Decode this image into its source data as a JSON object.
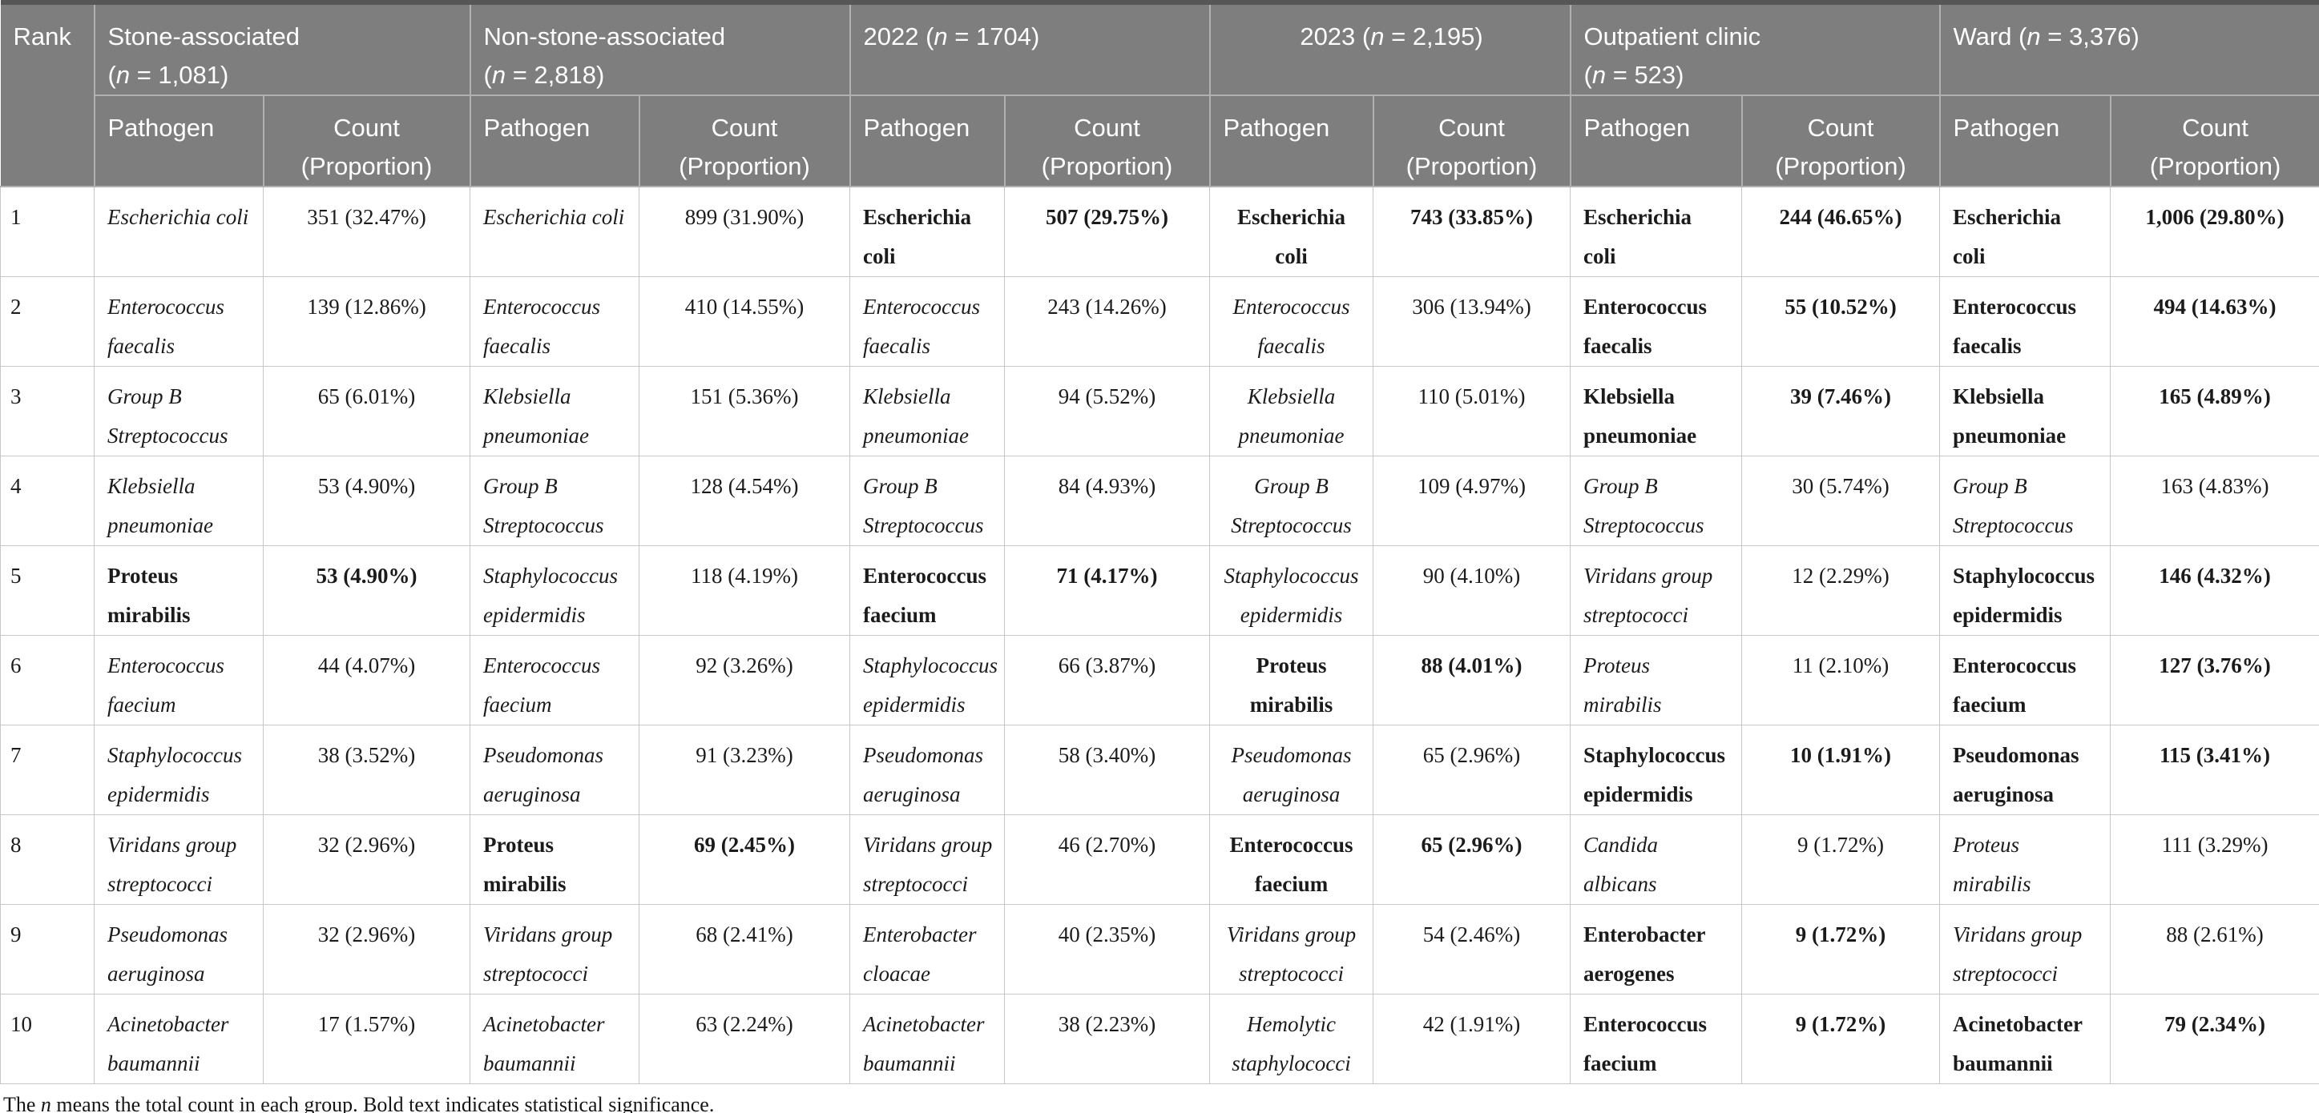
{
  "colors": {
    "header_bg": "#7e7e7e",
    "header_text": "#ffffff",
    "header_divider": "#b0b0b0",
    "grid_line": "#c6c6c6",
    "body_text": "#1b1b1b",
    "top_rule": "#565656",
    "page_bg": "#ffffff"
  },
  "table": {
    "rank_header": "Rank",
    "groups": [
      {
        "title": "Stone-associated\n(n = 1,081)",
        "pathogen_header": "Pathogen",
        "count_header": "Count\n(Proportion)"
      },
      {
        "title": "Non-stone-associated\n(n = 2,818)",
        "pathogen_header": "Pathogen",
        "count_header": "Count\n(Proportion)"
      },
      {
        "title": "2022 (n = 1704)",
        "pathogen_header": "Pathogen",
        "count_header": "Count\n(Proportion)"
      },
      {
        "title": "2023 (n = 2,195)",
        "pathogen_header": "Pathogen",
        "count_header": "Count\n(Proportion)"
      },
      {
        "title": "Outpatient clinic\n(n = 523)",
        "pathogen_header": "Pathogen",
        "count_header": "Count\n(Proportion)"
      },
      {
        "title": "Ward (n = 3,376)",
        "pathogen_header": "Pathogen",
        "count_header": "Count\n(Proportion)"
      }
    ],
    "rows": [
      {
        "rank": "1",
        "cells": [
          {
            "pathogen": "Escherichia coli",
            "count": "351 (32.47%)",
            "sig": false
          },
          {
            "pathogen": "Escherichia coli",
            "count": "899 (31.90%)",
            "sig": false
          },
          {
            "pathogen": "Escherichia\ncoli",
            "count": "507 (29.75%)",
            "sig": true
          },
          {
            "pathogen": "Escherichia\ncoli",
            "count": "743 (33.85%)",
            "sig": true
          },
          {
            "pathogen": "Escherichia\ncoli",
            "count": "244 (46.65%)",
            "sig": true
          },
          {
            "pathogen": "Escherichia\ncoli",
            "count": "1,006 (29.80%)",
            "sig": true
          }
        ]
      },
      {
        "rank": "2",
        "cells": [
          {
            "pathogen": "Enterococcus\nfaecalis",
            "count": "139 (12.86%)",
            "sig": false
          },
          {
            "pathogen": "Enterococcus\nfaecalis",
            "count": "410 (14.55%)",
            "sig": false
          },
          {
            "pathogen": "Enterococcus\nfaecalis",
            "count": "243 (14.26%)",
            "sig": false
          },
          {
            "pathogen": "Enterococcus\nfaecalis",
            "count": "306 (13.94%)",
            "sig": false
          },
          {
            "pathogen": "Enterococcus\nfaecalis",
            "count": "55 (10.52%)",
            "sig": true
          },
          {
            "pathogen": "Enterococcus\nfaecalis",
            "count": "494 (14.63%)",
            "sig": true
          }
        ]
      },
      {
        "rank": "3",
        "cells": [
          {
            "pathogen": "Group B\nStreptococcus",
            "count": "65 (6.01%)",
            "sig": false
          },
          {
            "pathogen": "Klebsiella\npneumoniae",
            "count": "151 (5.36%)",
            "sig": false
          },
          {
            "pathogen": "Klebsiella\npneumoniae",
            "count": "94 (5.52%)",
            "sig": false
          },
          {
            "pathogen": "Klebsiella\npneumoniae",
            "count": "110 (5.01%)",
            "sig": false
          },
          {
            "pathogen": "Klebsiella\npneumoniae",
            "count": "39 (7.46%)",
            "sig": true
          },
          {
            "pathogen": "Klebsiella\npneumoniae",
            "count": "165 (4.89%)",
            "sig": true
          }
        ]
      },
      {
        "rank": "4",
        "cells": [
          {
            "pathogen": "Klebsiella\npneumoniae",
            "count": "53 (4.90%)",
            "sig": false
          },
          {
            "pathogen": "Group B\nStreptococcus",
            "count": "128 (4.54%)",
            "sig": false
          },
          {
            "pathogen": "Group B\nStreptococcus",
            "count": "84 (4.93%)",
            "sig": false
          },
          {
            "pathogen": "Group B\nStreptococcus",
            "count": "109 (4.97%)",
            "sig": false
          },
          {
            "pathogen": "Group B\nStreptococcus",
            "count": "30 (5.74%)",
            "sig": false
          },
          {
            "pathogen": "Group B\nStreptococcus",
            "count": "163 (4.83%)",
            "sig": false
          }
        ]
      },
      {
        "rank": "5",
        "cells": [
          {
            "pathogen": "Proteus\nmirabilis",
            "count": "53 (4.90%)",
            "sig": true
          },
          {
            "pathogen": "Staphylococcus\nepidermidis",
            "count": "118 (4.19%)",
            "sig": false
          },
          {
            "pathogen": "Enterococcus\nfaecium",
            "count": "71 (4.17%)",
            "sig": true
          },
          {
            "pathogen": "Staphylococcus\nepidermidis",
            "count": "90 (4.10%)",
            "sig": false
          },
          {
            "pathogen": "Viridans group\nstreptococci",
            "count": "12 (2.29%)",
            "sig": false
          },
          {
            "pathogen": "Staphylococcus\nepidermidis",
            "count": "146 (4.32%)",
            "sig": true
          }
        ]
      },
      {
        "rank": "6",
        "cells": [
          {
            "pathogen": "Enterococcus\nfaecium",
            "count": "44 (4.07%)",
            "sig": false
          },
          {
            "pathogen": "Enterococcus\nfaecium",
            "count": "92 (3.26%)",
            "sig": false
          },
          {
            "pathogen": "Staphylococcus\nepidermidis",
            "count": "66 (3.87%)",
            "sig": false
          },
          {
            "pathogen": "Proteus\nmirabilis",
            "count": "88 (4.01%)",
            "sig": true
          },
          {
            "pathogen": "Proteus\nmirabilis",
            "count": "11 (2.10%)",
            "sig": false
          },
          {
            "pathogen": "Enterococcus\nfaecium",
            "count": "127 (3.76%)",
            "sig": true
          }
        ]
      },
      {
        "rank": "7",
        "cells": [
          {
            "pathogen": "Staphylococcus\nepidermidis",
            "count": "38 (3.52%)",
            "sig": false
          },
          {
            "pathogen": "Pseudomonas\naeruginosa",
            "count": "91 (3.23%)",
            "sig": false
          },
          {
            "pathogen": "Pseudomonas\naeruginosa",
            "count": "58 (3.40%)",
            "sig": false
          },
          {
            "pathogen": "Pseudomonas\naeruginosa",
            "count": "65 (2.96%)",
            "sig": false
          },
          {
            "pathogen": "Staphylococcus\nepidermidis",
            "count": "10 (1.91%)",
            "sig": true
          },
          {
            "pathogen": "Pseudomonas\naeruginosa",
            "count": "115 (3.41%)",
            "sig": true
          }
        ]
      },
      {
        "rank": "8",
        "cells": [
          {
            "pathogen": "Viridans group\nstreptococci",
            "count": "32 (2.96%)",
            "sig": false
          },
          {
            "pathogen": "Proteus\nmirabilis",
            "count": "69 (2.45%)",
            "sig": true
          },
          {
            "pathogen": "Viridans group\nstreptococci",
            "count": "46 (2.70%)",
            "sig": false
          },
          {
            "pathogen": "Enterococcus\nfaecium",
            "count": "65 (2.96%)",
            "sig": true
          },
          {
            "pathogen": "Candida\nalbicans",
            "count": "9 (1.72%)",
            "sig": false
          },
          {
            "pathogen": "Proteus\nmirabilis",
            "count": "111 (3.29%)",
            "sig": false
          }
        ]
      },
      {
        "rank": "9",
        "cells": [
          {
            "pathogen": "Pseudomonas\naeruginosa",
            "count": "32 (2.96%)",
            "sig": false
          },
          {
            "pathogen": "Viridans group\nstreptococci",
            "count": "68 (2.41%)",
            "sig": false
          },
          {
            "pathogen": "Enterobacter\ncloacae",
            "count": "40 (2.35%)",
            "sig": false
          },
          {
            "pathogen": "Viridans group\nstreptococci",
            "count": "54 (2.46%)",
            "sig": false
          },
          {
            "pathogen": "Enterobacter\naerogenes",
            "count": "9 (1.72%)",
            "sig": true
          },
          {
            "pathogen": "Viridans group\nstreptococci",
            "count": "88 (2.61%)",
            "sig": false
          }
        ]
      },
      {
        "rank": "10",
        "cells": [
          {
            "pathogen": "Acinetobacter\nbaumannii",
            "count": "17 (1.57%)",
            "sig": false
          },
          {
            "pathogen": "Acinetobacter\nbaumannii",
            "count": "63 (2.24%)",
            "sig": false
          },
          {
            "pathogen": "Acinetobacter\nbaumannii",
            "count": "38 (2.23%)",
            "sig": false
          },
          {
            "pathogen": "Hemolytic\nstaphylococci",
            "count": "42 (1.91%)",
            "sig": false
          },
          {
            "pathogen": "Enterococcus\nfaecium",
            "count": "9 (1.72%)",
            "sig": true
          },
          {
            "pathogen": "Acinetobacter\nbaumannii",
            "count": "79 (2.34%)",
            "sig": true
          }
        ]
      }
    ],
    "footnote": "The n means the total count in each group. Bold text indicates statistical significance."
  }
}
